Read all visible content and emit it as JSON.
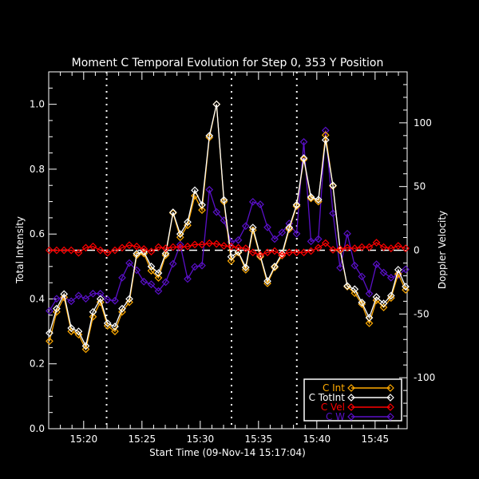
{
  "chart_data": {
    "type": "line",
    "title": "Moment C Temporal Evolution for Step 0, 353 Y Position",
    "xlabel": "Start Time (09-Nov-14 15:17:04)",
    "ylabel": "Total Intensity",
    "ylabel_right": "Doppler Velocity",
    "xlim": [
      "15:17:00",
      "15:47:45"
    ],
    "ylim": [
      0,
      1.1
    ],
    "ylim_right": [
      -140,
      140
    ],
    "x_ticks": [
      "15:20",
      "15:25",
      "15:30",
      "15:35",
      "15:40",
      "15:45"
    ],
    "y_ticks": [
      "0.0",
      "0.2",
      "0.4",
      "0.6",
      "0.8",
      "1.0"
    ],
    "y_ticks_right": [
      "-100",
      "-50",
      "0",
      "50",
      "100"
    ],
    "grid": false,
    "legend_position": "bottom-right",
    "vertical_markers": [
      "15:21:58",
      "15:32:41",
      "15:38:17"
    ],
    "zero_line_right": 0,
    "x": [
      "15:17:04",
      "15:17:41",
      "15:18:19",
      "15:18:56",
      "15:19:34",
      "15:20:11",
      "15:20:48",
      "15:21:26",
      "15:22:03",
      "15:22:41",
      "15:23:18",
      "15:23:55",
      "15:24:33",
      "15:25:10",
      "15:25:48",
      "15:26:25",
      "15:27:02",
      "15:27:40",
      "15:28:17",
      "15:28:55",
      "15:29:32",
      "15:30:09",
      "15:30:47",
      "15:31:24",
      "15:32:02",
      "15:32:39",
      "15:33:16",
      "15:33:54",
      "15:34:31",
      "15:35:09",
      "15:35:46",
      "15:36:23",
      "15:37:01",
      "15:37:38",
      "15:38:16",
      "15:38:53",
      "15:39:30",
      "15:40:08",
      "15:40:45",
      "15:41:23",
      "15:42:00",
      "15:42:37",
      "15:43:15",
      "15:43:52",
      "15:44:30",
      "15:45:07",
      "15:45:44",
      "15:46:22",
      "15:46:59",
      "15:47:37"
    ],
    "series": [
      {
        "name": "C Int",
        "axis": "left",
        "color": "#ffaa00",
        "values": [
          0.27,
          0.36,
          0.405,
          0.3,
          0.29,
          0.245,
          0.345,
          0.39,
          0.317,
          0.3,
          0.36,
          0.39,
          0.535,
          0.54,
          0.487,
          0.465,
          0.535,
          0.665,
          0.59,
          0.627,
          0.718,
          0.674,
          0.898,
          1.0,
          0.7,
          0.517,
          0.543,
          0.49,
          0.612,
          0.53,
          0.448,
          0.497,
          0.534,
          0.615,
          0.686,
          0.83,
          0.71,
          0.7,
          0.905,
          0.748,
          0.55,
          0.438,
          0.418,
          0.384,
          0.325,
          0.396,
          0.374,
          0.403,
          0.477,
          0.428
        ]
      },
      {
        "name": "C TotInt",
        "axis": "left",
        "color": "#ffffff",
        "values": [
          0.295,
          0.37,
          0.415,
          0.31,
          0.3,
          0.255,
          0.36,
          0.4,
          0.325,
          0.315,
          0.37,
          0.4,
          0.54,
          0.545,
          0.5,
          0.48,
          0.54,
          0.667,
          0.6,
          0.637,
          0.735,
          0.69,
          0.903,
          1.0,
          0.705,
          0.53,
          0.545,
          0.497,
          0.62,
          0.534,
          0.455,
          0.5,
          0.54,
          0.62,
          0.69,
          0.834,
          0.714,
          0.706,
          0.89,
          0.75,
          0.553,
          0.44,
          0.43,
          0.389,
          0.342,
          0.406,
          0.386,
          0.41,
          0.49,
          0.438
        ]
      },
      {
        "name": "C Vel",
        "axis": "right",
        "color": "#ff0000",
        "values": [
          0,
          0,
          0,
          0,
          -2,
          2,
          3,
          0,
          -2,
          0,
          2,
          4,
          3,
          1,
          -1,
          2.5,
          1.5,
          2.5,
          2.5,
          3,
          4.5,
          4.5,
          5.5,
          5,
          3.5,
          3,
          2,
          1.5,
          -1.7,
          -3.7,
          -1.7,
          -0.6,
          -3.7,
          -1.7,
          -1.7,
          -1.7,
          -0.6,
          2,
          5.6,
          0.4,
          0.8,
          2,
          1.5,
          2.5,
          2.5,
          6,
          2.5,
          1.5,
          3.5,
          1.5
        ]
      },
      {
        "name": "C W",
        "axis": "right",
        "color": "#5a10c8",
        "values": [
          -47.5,
          -38,
          -37,
          -40,
          -35.6,
          -38,
          -34,
          -34,
          -38.8,
          -39.6,
          -21.5,
          -10,
          -15.6,
          -24.6,
          -26.7,
          -32,
          -25,
          -10.6,
          4.4,
          -22.5,
          -13,
          -12,
          47.5,
          30,
          23.5,
          6.5,
          8,
          19,
          38,
          36,
          18,
          8.8,
          14,
          21,
          13,
          85,
          7,
          8.8,
          94,
          29,
          -13.7,
          13,
          -12,
          -20.6,
          -34,
          -11,
          -17.5,
          -21.5,
          -19.4,
          -15
        ]
      }
    ]
  }
}
